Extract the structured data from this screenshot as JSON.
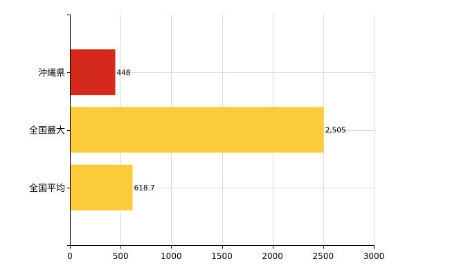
{
  "chart_data": {
    "type": "bar",
    "orientation": "horizontal",
    "title": "",
    "xlabel": "",
    "ylabel": "",
    "xlim": [
      0,
      3000
    ],
    "x_ticks": [
      0,
      500,
      1000,
      1500,
      2000,
      2500,
      3000
    ],
    "x_tick_labels": [
      "0",
      "500",
      "1000",
      "1500",
      "2000",
      "2500",
      "3000"
    ],
    "grid": true,
    "categories": [
      "沖縄県",
      "全国最大",
      "全国平均"
    ],
    "values": [
      448,
      2505,
      618.7
    ],
    "value_labels": [
      "448",
      "2,505",
      "618.7"
    ],
    "colors": [
      "#d42a1e",
      "#fccb3b",
      "#fccb3b"
    ]
  }
}
